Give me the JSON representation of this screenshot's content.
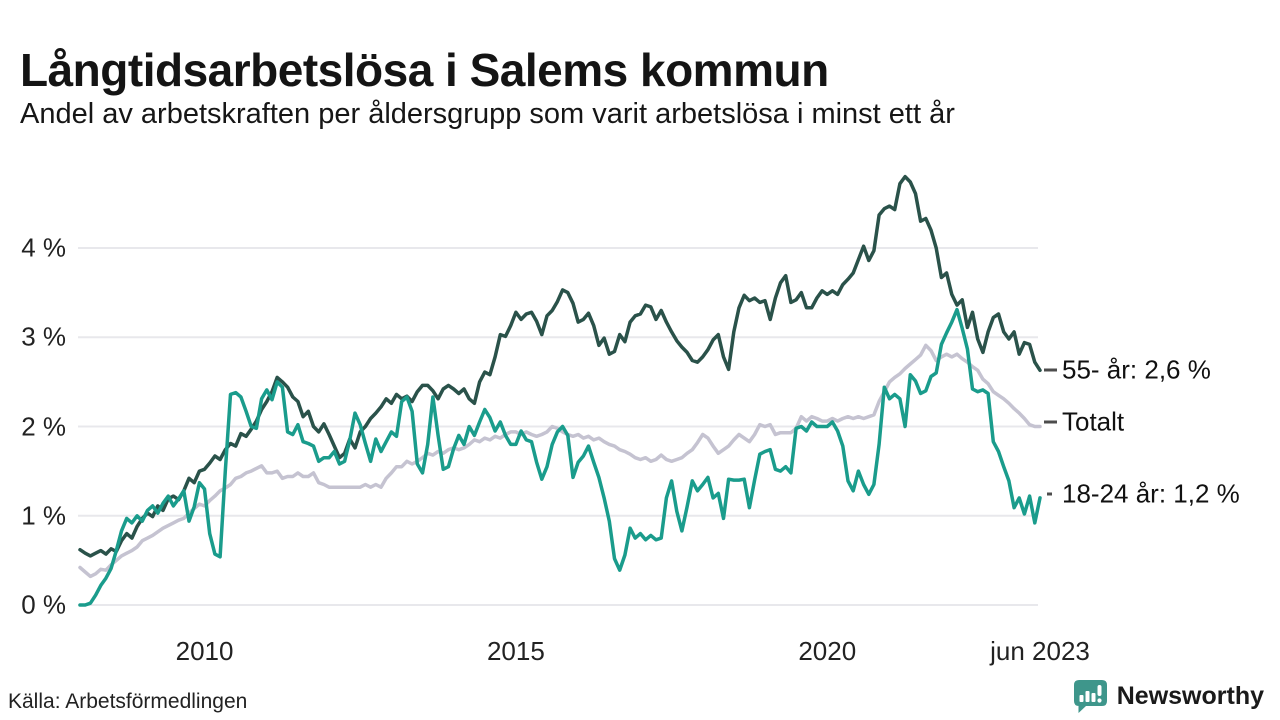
{
  "header": {
    "title": "Långtidsarbetslösa i Salems kommun",
    "subtitle": "Andel av arbetskraften per åldersgrupp som varit arbetslösa i minst ett år"
  },
  "footer": {
    "source": "Källa: Arbetsförmedlingen",
    "brand_name": "Newsworthy"
  },
  "colors": {
    "series_55": "#2a524a",
    "series_total": "#c5c3d1",
    "series_1824": "#1a9c8c",
    "grid": "#e8e8ec",
    "brand": "#3e968b",
    "annotation_dash": "#4d4d4d",
    "text": "#1a1a1a"
  },
  "chart_data": {
    "type": "line",
    "title": "Långtidsarbetslösa i Salems kommun",
    "subtitle": "Andel av arbetskraften per åldersgrupp som varit arbetslösa i minst ett år",
    "x_unit": "month",
    "x_range": [
      "2008-01",
      "2023-06"
    ],
    "ylim": [
      0,
      4.9
    ],
    "grid": true,
    "legend_position": "right-annotations",
    "yticks": [
      {
        "label": "0 %",
        "value": 0
      },
      {
        "label": "1 %",
        "value": 1
      },
      {
        "label": "2 %",
        "value": 2
      },
      {
        "label": "3 %",
        "value": 3
      },
      {
        "label": "4 %",
        "value": 4
      }
    ],
    "xticks": [
      {
        "label": "2010",
        "month_index": 24
      },
      {
        "label": "2015",
        "month_index": 84
      },
      {
        "label": "2020",
        "month_index": 144
      },
      {
        "label": "jun 2023",
        "month_index": 185
      }
    ],
    "series": [
      {
        "name": "Totalt",
        "color": "#c5c3d1",
        "values": [
          0.42,
          0.37,
          0.32,
          0.35,
          0.4,
          0.39,
          0.45,
          0.5,
          0.55,
          0.58,
          0.61,
          0.65,
          0.72,
          0.75,
          0.78,
          0.82,
          0.86,
          0.89,
          0.92,
          0.95,
          0.97,
          1.03,
          1.08,
          1.13,
          1.11,
          1.17,
          1.22,
          1.28,
          1.31,
          1.35,
          1.42,
          1.44,
          1.48,
          1.5,
          1.53,
          1.56,
          1.48,
          1.48,
          1.5,
          1.42,
          1.44,
          1.44,
          1.48,
          1.44,
          1.44,
          1.48,
          1.37,
          1.35,
          1.32,
          1.32,
          1.32,
          1.32,
          1.32,
          1.32,
          1.32,
          1.35,
          1.32,
          1.35,
          1.32,
          1.42,
          1.48,
          1.55,
          1.55,
          1.61,
          1.58,
          1.61,
          1.65,
          1.7,
          1.68,
          1.72,
          1.7,
          1.74,
          1.76,
          1.74,
          1.76,
          1.8,
          1.85,
          1.83,
          1.87,
          1.85,
          1.89,
          1.87,
          1.91,
          1.94,
          1.94,
          1.91,
          1.94,
          1.91,
          1.89,
          1.91,
          1.94,
          2.0,
          1.98,
          1.94,
          1.91,
          1.89,
          1.91,
          1.87,
          1.89,
          1.85,
          1.87,
          1.83,
          1.8,
          1.78,
          1.74,
          1.72,
          1.69,
          1.65,
          1.63,
          1.65,
          1.61,
          1.63,
          1.68,
          1.63,
          1.61,
          1.63,
          1.65,
          1.7,
          1.74,
          1.82,
          1.91,
          1.87,
          1.78,
          1.7,
          1.74,
          1.78,
          1.85,
          1.91,
          1.87,
          1.83,
          1.91,
          2.02,
          2.0,
          2.02,
          1.91,
          1.93,
          1.93,
          1.93,
          1.98,
          2.11,
          2.06,
          2.11,
          2.09,
          2.06,
          2.06,
          2.09,
          2.06,
          2.09,
          2.11,
          2.09,
          2.11,
          2.09,
          2.11,
          2.13,
          2.28,
          2.39,
          2.5,
          2.55,
          2.59,
          2.65,
          2.7,
          2.75,
          2.8,
          2.91,
          2.85,
          2.74,
          2.78,
          2.81,
          2.78,
          2.81,
          2.76,
          2.72,
          2.67,
          2.63,
          2.53,
          2.48,
          2.39,
          2.35,
          2.31,
          2.26,
          2.2,
          2.15,
          2.09,
          2.02,
          2.0,
          2.0
        ]
      },
      {
        "name": "55- år",
        "color": "#2a524a",
        "values": [
          0.62,
          0.58,
          0.55,
          0.58,
          0.61,
          0.57,
          0.63,
          0.6,
          0.72,
          0.8,
          0.75,
          0.88,
          0.97,
          1.03,
          0.99,
          1.11,
          1.06,
          1.19,
          1.22,
          1.18,
          1.28,
          1.42,
          1.37,
          1.5,
          1.52,
          1.59,
          1.67,
          1.63,
          1.74,
          1.81,
          1.78,
          1.92,
          1.89,
          1.97,
          2.06,
          2.19,
          2.28,
          2.39,
          2.55,
          2.5,
          2.44,
          2.33,
          2.28,
          2.11,
          2.17,
          2.0,
          1.94,
          2.03,
          1.91,
          1.78,
          1.65,
          1.7,
          1.86,
          1.76,
          1.94,
          2.0,
          2.09,
          2.15,
          2.22,
          2.31,
          2.26,
          2.36,
          2.31,
          2.34,
          2.28,
          2.39,
          2.46,
          2.46,
          2.4,
          2.31,
          2.42,
          2.46,
          2.42,
          2.37,
          2.42,
          2.31,
          2.26,
          2.5,
          2.61,
          2.58,
          2.78,
          3.03,
          3.01,
          3.13,
          3.28,
          3.2,
          3.26,
          3.28,
          3.18,
          3.03,
          3.24,
          3.3,
          3.4,
          3.53,
          3.5,
          3.38,
          3.17,
          3.2,
          3.27,
          3.13,
          2.91,
          2.99,
          2.81,
          2.84,
          3.03,
          2.95,
          3.17,
          3.24,
          3.26,
          3.36,
          3.34,
          3.2,
          3.3,
          3.17,
          3.06,
          2.96,
          2.89,
          2.83,
          2.74,
          2.72,
          2.78,
          2.86,
          2.97,
          3.03,
          2.78,
          2.64,
          3.06,
          3.33,
          3.47,
          3.41,
          3.44,
          3.39,
          3.41,
          3.2,
          3.44,
          3.61,
          3.69,
          3.39,
          3.42,
          3.5,
          3.33,
          3.33,
          3.44,
          3.52,
          3.48,
          3.52,
          3.48,
          3.59,
          3.65,
          3.72,
          3.87,
          4.02,
          3.86,
          3.97,
          4.37,
          4.44,
          4.47,
          4.43,
          4.72,
          4.8,
          4.74,
          4.61,
          4.3,
          4.33,
          4.2,
          4.0,
          3.67,
          3.72,
          3.48,
          3.36,
          3.42,
          3.11,
          3.28,
          2.98,
          2.83,
          3.06,
          3.22,
          3.26,
          3.06,
          2.98,
          3.06,
          2.81,
          2.94,
          2.92,
          2.72,
          2.63
        ]
      },
      {
        "name": "18-24 år",
        "color": "#1a9c8c",
        "values": [
          0.0,
          0.0,
          0.02,
          0.11,
          0.22,
          0.3,
          0.41,
          0.61,
          0.83,
          0.97,
          0.92,
          1.0,
          0.94,
          1.06,
          1.11,
          1.03,
          1.14,
          1.22,
          1.11,
          1.19,
          1.28,
          0.94,
          1.1,
          1.37,
          1.3,
          0.8,
          0.57,
          0.54,
          1.5,
          2.36,
          2.38,
          2.33,
          2.17,
          2.0,
          1.98,
          2.31,
          2.41,
          2.3,
          2.5,
          2.44,
          1.94,
          1.91,
          2.02,
          1.83,
          1.81,
          1.78,
          1.61,
          1.65,
          1.65,
          1.72,
          1.58,
          1.61,
          1.85,
          2.15,
          2.02,
          1.81,
          1.61,
          1.86,
          1.72,
          1.83,
          1.94,
          1.89,
          2.28,
          2.33,
          2.17,
          1.58,
          1.48,
          1.8,
          2.33,
          1.9,
          1.52,
          1.55,
          1.75,
          1.9,
          1.8,
          2.0,
          1.9,
          2.05,
          2.19,
          2.1,
          1.95,
          2.05,
          1.9,
          1.8,
          1.8,
          1.95,
          1.85,
          1.83,
          1.6,
          1.41,
          1.55,
          1.8,
          1.94,
          2.0,
          1.9,
          1.43,
          1.6,
          1.67,
          1.78,
          1.6,
          1.43,
          1.2,
          0.94,
          0.52,
          0.39,
          0.56,
          0.86,
          0.75,
          0.8,
          0.73,
          0.78,
          0.73,
          0.75,
          1.2,
          1.39,
          1.05,
          0.83,
          1.1,
          1.39,
          1.28,
          1.35,
          1.43,
          1.2,
          1.25,
          0.97,
          1.41,
          1.4,
          1.4,
          1.41,
          1.09,
          1.4,
          1.69,
          1.72,
          1.74,
          1.52,
          1.5,
          1.55,
          1.48,
          1.98,
          2.0,
          1.95,
          2.05,
          2.0,
          2.0,
          2.0,
          2.05,
          1.95,
          1.78,
          1.39,
          1.28,
          1.5,
          1.35,
          1.24,
          1.35,
          1.8,
          2.44,
          2.31,
          2.36,
          2.31,
          2.0,
          2.58,
          2.51,
          2.37,
          2.4,
          2.56,
          2.6,
          2.92,
          3.05,
          3.17,
          3.31,
          3.1,
          2.87,
          2.42,
          2.39,
          2.41,
          2.37,
          1.83,
          1.72,
          1.55,
          1.39,
          1.09,
          1.2,
          1.02,
          1.22,
          0.92,
          1.2
        ]
      }
    ],
    "annotations": [
      {
        "text": "55- år: 2,6 %",
        "value": 2.63,
        "dash_left": 1044,
        "dash_width": 13,
        "dy": 0
      },
      {
        "text": "Totalt",
        "value": 2.0,
        "dash_left": 1044,
        "dash_width": 13,
        "dy": -5
      },
      {
        "text": "18-24 år: 1,2 %",
        "value": 1.2,
        "dash_left": 1047,
        "dash_width": 5,
        "dy": -4
      }
    ]
  }
}
